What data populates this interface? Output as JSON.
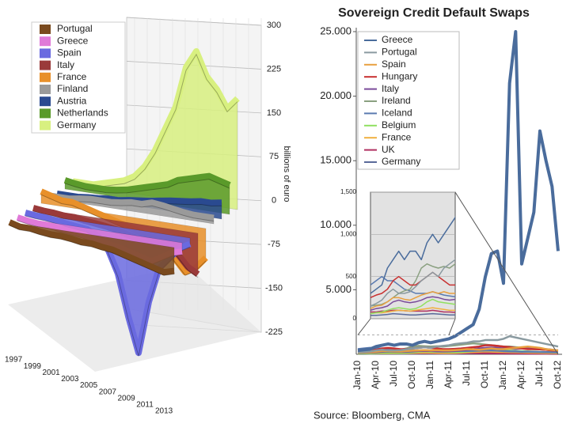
{
  "chart_data": [
    {
      "type": "ribbon3d",
      "x": [
        1997,
        1998,
        1999,
        2000,
        2001,
        2002,
        2003,
        2004,
        2005,
        2006,
        2007,
        2008,
        2009,
        2010,
        2011,
        2012,
        2013
      ],
      "xticks": [
        1997,
        1999,
        2001,
        2003,
        2005,
        2007,
        2009,
        2011,
        2013
      ],
      "ylim": [
        -225,
        300
      ],
      "yticks": [
        300,
        225,
        150,
        75,
        0,
        -75,
        -150,
        -225
      ],
      "ylabel": "billions of euro",
      "series": [
        {
          "name": "Portugal",
          "color": "#7a4a1e",
          "values": [
            0,
            -5,
            -5,
            -8,
            -10,
            -10,
            -12,
            -15,
            -15,
            -18,
            -20,
            -25,
            -30,
            -35,
            -40,
            -45,
            -40
          ]
        },
        {
          "name": "Greece",
          "color": "#e07ad8",
          "values": [
            0,
            -3,
            -5,
            -5,
            -8,
            -10,
            -12,
            -15,
            -18,
            -22,
            -25,
            -30,
            -35,
            -40,
            -30,
            -20,
            -15
          ]
        },
        {
          "name": "Spain",
          "color": "#6a6ae0",
          "values": [
            0,
            -2,
            -3,
            -5,
            -8,
            -10,
            -12,
            -20,
            -40,
            -80,
            -150,
            -210,
            -120,
            -60,
            -40,
            -20,
            -10
          ]
        },
        {
          "name": "Italy",
          "color": "#9a3a3a",
          "values": [
            0,
            -2,
            -3,
            -5,
            -5,
            -8,
            -10,
            -12,
            -15,
            -20,
            -25,
            -30,
            -30,
            -35,
            -40,
            -60,
            -70
          ]
        },
        {
          "name": "France",
          "color": "#e8902a",
          "values": [
            20,
            15,
            10,
            10,
            5,
            0,
            -5,
            -10,
            -15,
            -20,
            -25,
            -30,
            -40,
            -60,
            -80,
            -70,
            -50
          ]
        },
        {
          "name": "Finland",
          "color": "#9a9a9a",
          "values": [
            5,
            5,
            5,
            8,
            10,
            10,
            10,
            12,
            15,
            15,
            20,
            18,
            15,
            12,
            10,
            10,
            10
          ]
        },
        {
          "name": "Austria",
          "color": "#2a4a90",
          "values": [
            0,
            0,
            0,
            2,
            3,
            5,
            5,
            8,
            10,
            12,
            15,
            18,
            20,
            22,
            25,
            25,
            28
          ]
        },
        {
          "name": "Netherlands",
          "color": "#5a9a2a",
          "values": [
            15,
            12,
            10,
            10,
            10,
            12,
            15,
            20,
            25,
            30,
            35,
            45,
            50,
            55,
            60,
            55,
            50
          ]
        },
        {
          "name": "Germany",
          "color": "#d8f080",
          "values": [
            5,
            5,
            5,
            10,
            15,
            20,
            30,
            50,
            80,
            120,
            160,
            230,
            260,
            220,
            200,
            170,
            190
          ]
        }
      ]
    },
    {
      "type": "line",
      "title": "Sovereign Credit Default Swaps",
      "source": "Source: Bloomberg, CMA",
      "categories": [
        "Jan-10",
        null,
        null,
        "Apr-10",
        null,
        null,
        "Jul-10",
        null,
        null,
        "Oct-10",
        null,
        null,
        "Jan-11",
        null,
        null,
        "Apr-11",
        null,
        null,
        "Jul-11",
        null,
        null,
        "Oct-11",
        null,
        null,
        "Jan-12",
        null,
        null,
        "Apr-12",
        null,
        null,
        "Jul-12",
        null,
        null,
        "Oct-12"
      ],
      "ylim": [
        0,
        25000
      ],
      "yticks": [
        {
          "value": 5000,
          "label": "5.000"
        },
        {
          "value": 10000,
          "label": "10.000"
        },
        {
          "value": 15000,
          "label": "15.000"
        },
        {
          "value": 20000,
          "label": "20.000"
        },
        {
          "value": 25000,
          "label": "25.000"
        }
      ],
      "inset": {
        "xlim": [
          0,
          15
        ],
        "ylim": [
          0,
          1500
        ],
        "yticks": [
          0,
          500,
          {
            "value": 1000,
            "label": "1,000"
          },
          {
            "value": 1500,
            "label": "1,500"
          }
        ]
      },
      "series": [
        {
          "name": "Greece",
          "color": "#4a6c9c",
          "values": [
            300,
            350,
            400,
            600,
            700,
            800,
            700,
            800,
            800,
            700,
            900,
            1000,
            900,
            1000,
            1100,
            1200,
            1400,
            1700,
            2000,
            2300,
            3500,
            6000,
            7800,
            8000,
            5500,
            21000,
            25000,
            7000,
            9000,
            11000,
            17300,
            15000,
            13000,
            8000
          ]
        },
        {
          "name": "Portugal",
          "color": "#8a9aa0",
          "values": [
            150,
            180,
            220,
            300,
            350,
            300,
            300,
            320,
            380,
            450,
            500,
            550,
            500,
            600,
            650,
            700,
            800,
            850,
            900,
            1000,
            1000,
            1100,
            1100,
            1100,
            1200,
            1400,
            1300,
            1200,
            1100,
            1000,
            900,
            800,
            700,
            600
          ]
        },
        {
          "name": "Spain",
          "color": "#e8a040",
          "values": [
            120,
            150,
            160,
            200,
            250,
            250,
            230,
            220,
            250,
            280,
            300,
            320,
            300,
            320,
            300,
            300,
            320,
            350,
            400,
            380,
            350,
            400,
            450,
            400,
            400,
            450,
            500,
            550,
            600,
            550,
            500,
            400,
            350,
            300
          ]
        },
        {
          "name": "Hungary",
          "color": "#c83030",
          "values": [
            250,
            280,
            300,
            350,
            450,
            500,
            450,
            400,
            400,
            450,
            500,
            550,
            500,
            450,
            400,
            400,
            420,
            450,
            500,
            550,
            600,
            700,
            700,
            650,
            600,
            550,
            500,
            450,
            400,
            400,
            380,
            350,
            300,
            280
          ]
        },
        {
          "name": "Italy",
          "color": "#7a4a9a",
          "values": [
            100,
            120,
            130,
            150,
            200,
            220,
            200,
            190,
            200,
            220,
            250,
            260,
            250,
            230,
            220,
            230,
            250,
            300,
            350,
            400,
            450,
            500,
            520,
            500,
            450,
            450,
            420,
            450,
            500,
            480,
            450,
            400,
            350,
            300
          ]
        },
        {
          "name": "Ireland",
          "color": "#8aa080",
          "values": [
            150,
            160,
            170,
            200,
            250,
            300,
            330,
            350,
            450,
            600,
            650,
            620,
            600,
            620,
            600,
            650,
            700,
            750,
            800,
            850,
            800,
            750,
            700,
            650,
            600,
            600,
            550,
            500,
            450,
            400,
            380,
            350,
            300,
            280
          ]
        },
        {
          "name": "Iceland",
          "color": "#5a7ab0",
          "values": [
            400,
            450,
            500,
            450,
            450,
            400,
            350,
            330,
            300,
            300,
            300,
            320,
            300,
            280,
            270,
            260,
            250,
            250,
            260,
            270,
            280,
            300,
            300,
            280,
            250,
            230,
            220,
            200,
            200,
            190,
            180,
            170,
            160,
            150
          ]
        },
        {
          "name": "Belgium",
          "color": "#90e060",
          "values": [
            60,
            70,
            80,
            100,
            120,
            130,
            120,
            110,
            120,
            150,
            200,
            230,
            200,
            190,
            180,
            170,
            160,
            180,
            220,
            260,
            300,
            350,
            350,
            330,
            300,
            280,
            250,
            230,
            220,
            200,
            180,
            170,
            160,
            150
          ]
        },
        {
          "name": "France",
          "color": "#f0b040",
          "values": [
            60,
            70,
            70,
            80,
            90,
            100,
            95,
            90,
            100,
            110,
            120,
            130,
            120,
            110,
            100,
            100,
            110,
            130,
            160,
            180,
            200,
            220,
            210,
            190,
            180,
            170,
            160,
            150,
            140,
            130,
            120,
            110,
            100,
            90
          ]
        },
        {
          "name": "UK",
          "color": "#b03060",
          "values": [
            80,
            80,
            90,
            90,
            100,
            100,
            95,
            90,
            90,
            90,
            90,
            100,
            90,
            80,
            80,
            75,
            80,
            85,
            90,
            95,
            90,
            85,
            80,
            75,
            70,
            70,
            65,
            60,
            60,
            55,
            55,
            50,
            50,
            45
          ]
        },
        {
          "name": "Germany",
          "color": "#5a6a9a",
          "values": [
            40,
            40,
            45,
            50,
            60,
            55,
            50,
            45,
            45,
            50,
            55,
            60,
            55,
            50,
            45,
            45,
            50,
            60,
            70,
            90,
            100,
            110,
            100,
            90,
            80,
            75,
            70,
            65,
            60,
            55,
            50,
            45,
            40,
            35
          ]
        }
      ]
    }
  ]
}
